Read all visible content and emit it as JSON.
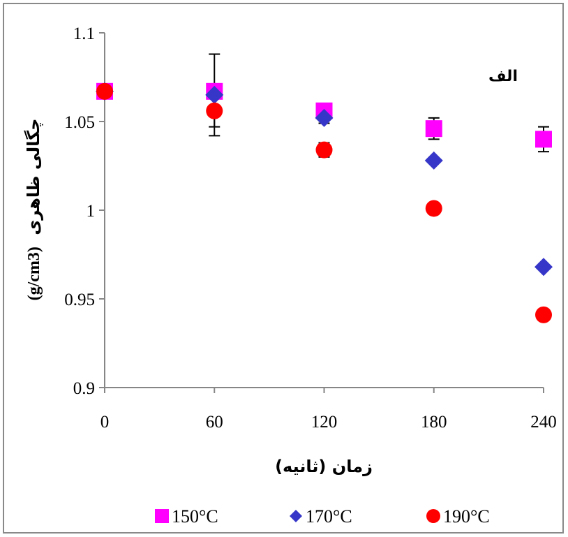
{
  "chart_data": {
    "type": "scatter",
    "panel_label": "الف",
    "xlabel": "زمان (ثانیه)",
    "ylabel": "چگالی ظاهری",
    "ylabel_unit": "(g/cm3)",
    "x_ticks": [
      "0",
      "60",
      "120",
      "180",
      "240"
    ],
    "y_ticks": [
      "0.9",
      "0.95",
      "1",
      "1.05",
      "1.1"
    ],
    "xlim": [
      0,
      240
    ],
    "ylim": [
      0.9,
      1.1
    ],
    "legend_position": "bottom",
    "series": [
      {
        "name": "150°C",
        "marker": "square",
        "color": "#ff00ff",
        "x": [
          0,
          60,
          120,
          180,
          240
        ],
        "y": [
          1.067,
          1.067,
          1.056,
          1.046,
          1.04
        ],
        "err": [
          0,
          0,
          0,
          0.006,
          0.007
        ]
      },
      {
        "name": "170°C",
        "marker": "diamond",
        "color": "#3636c9",
        "x": [
          0,
          60,
          120,
          180,
          240
        ],
        "y": [
          1.067,
          1.065,
          1.052,
          1.028,
          0.968
        ],
        "err": [
          0,
          0.023,
          0.003,
          0,
          0
        ]
      },
      {
        "name": "190°C",
        "marker": "circle",
        "color": "#ff0000",
        "x": [
          0,
          60,
          120,
          180,
          240
        ],
        "y": [
          1.067,
          1.056,
          1.034,
          1.001,
          0.941
        ],
        "err": [
          0,
          0.009,
          0.004,
          0,
          0
        ]
      }
    ]
  }
}
